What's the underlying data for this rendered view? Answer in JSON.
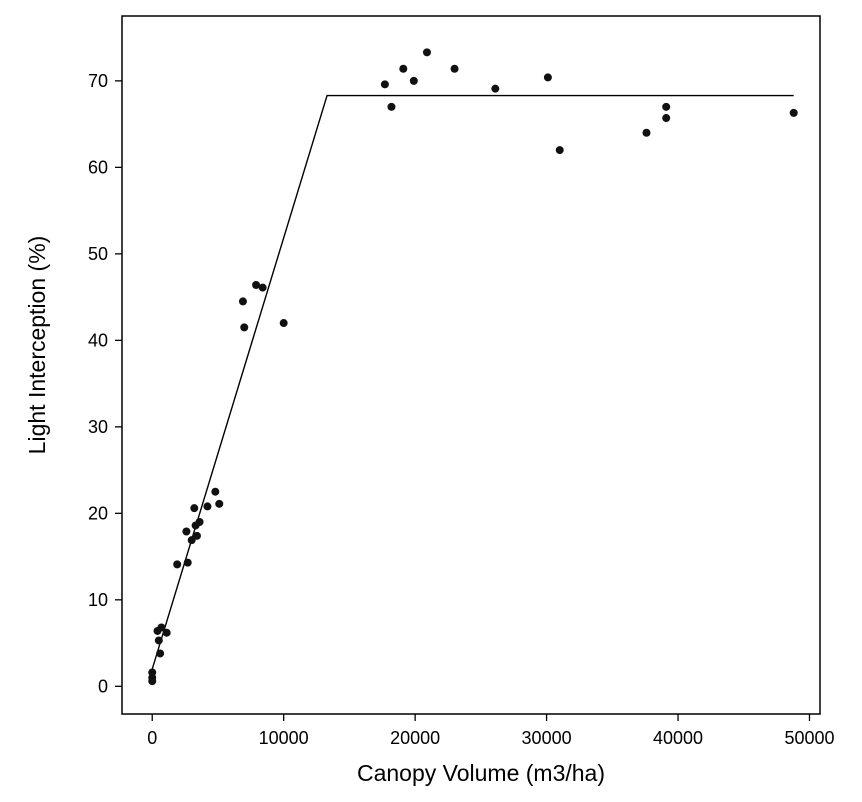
{
  "chart_data": {
    "type": "scatter",
    "title": "",
    "xlabel": "Canopy Volume (m3/ha)",
    "ylabel": "Light Interception (%)",
    "xlim": [
      -2300,
      50800
    ],
    "ylim": [
      -3.2,
      77.5
    ],
    "xticks": [
      0,
      10000,
      20000,
      30000,
      40000,
      50000
    ],
    "xtick_labels": [
      "0",
      "10000",
      "20000",
      "30000",
      "40000",
      "50000"
    ],
    "yticks": [
      0,
      10,
      20,
      30,
      40,
      50,
      60,
      70
    ],
    "ytick_labels": [
      "0",
      "10",
      "20",
      "30",
      "40",
      "50",
      "60",
      "70"
    ],
    "grid": false,
    "legend": "none",
    "colors": {
      "points": "#111111",
      "line": "#000000",
      "axes": "#000000"
    },
    "series": [
      {
        "kind": "points",
        "points": [
          [
            0,
            0.6
          ],
          [
            0,
            1.0
          ],
          [
            0,
            1.6
          ],
          [
            600,
            3.8
          ],
          [
            500,
            5.3
          ],
          [
            400,
            6.4
          ],
          [
            700,
            6.8
          ],
          [
            1100,
            6.2
          ],
          [
            1900,
            14.1
          ],
          [
            2700,
            14.3
          ],
          [
            2600,
            17.9
          ],
          [
            3000,
            16.9
          ],
          [
            3400,
            17.4
          ],
          [
            3300,
            18.6
          ],
          [
            3600,
            19.0
          ],
          [
            3200,
            20.6
          ],
          [
            4200,
            20.8
          ],
          [
            4800,
            22.5
          ],
          [
            5100,
            21.1
          ],
          [
            6900,
            44.5
          ],
          [
            7000,
            41.5
          ],
          [
            7900,
            46.4
          ],
          [
            8400,
            46.1
          ],
          [
            10000,
            42.0
          ],
          [
            17700,
            69.6
          ],
          [
            18200,
            67.0
          ],
          [
            19100,
            71.4
          ],
          [
            19900,
            70.0
          ],
          [
            20900,
            73.3
          ],
          [
            23000,
            71.4
          ],
          [
            26100,
            69.1
          ],
          [
            30100,
            70.4
          ],
          [
            31000,
            62.0
          ],
          [
            37600,
            64.0
          ],
          [
            39100,
            67.0
          ],
          [
            39100,
            65.7
          ],
          [
            48800,
            66.3
          ]
        ]
      },
      {
        "kind": "line",
        "points": [
          [
            0,
            2.0
          ],
          [
            13300,
            68.3
          ],
          [
            48800,
            68.3
          ]
        ]
      }
    ]
  }
}
